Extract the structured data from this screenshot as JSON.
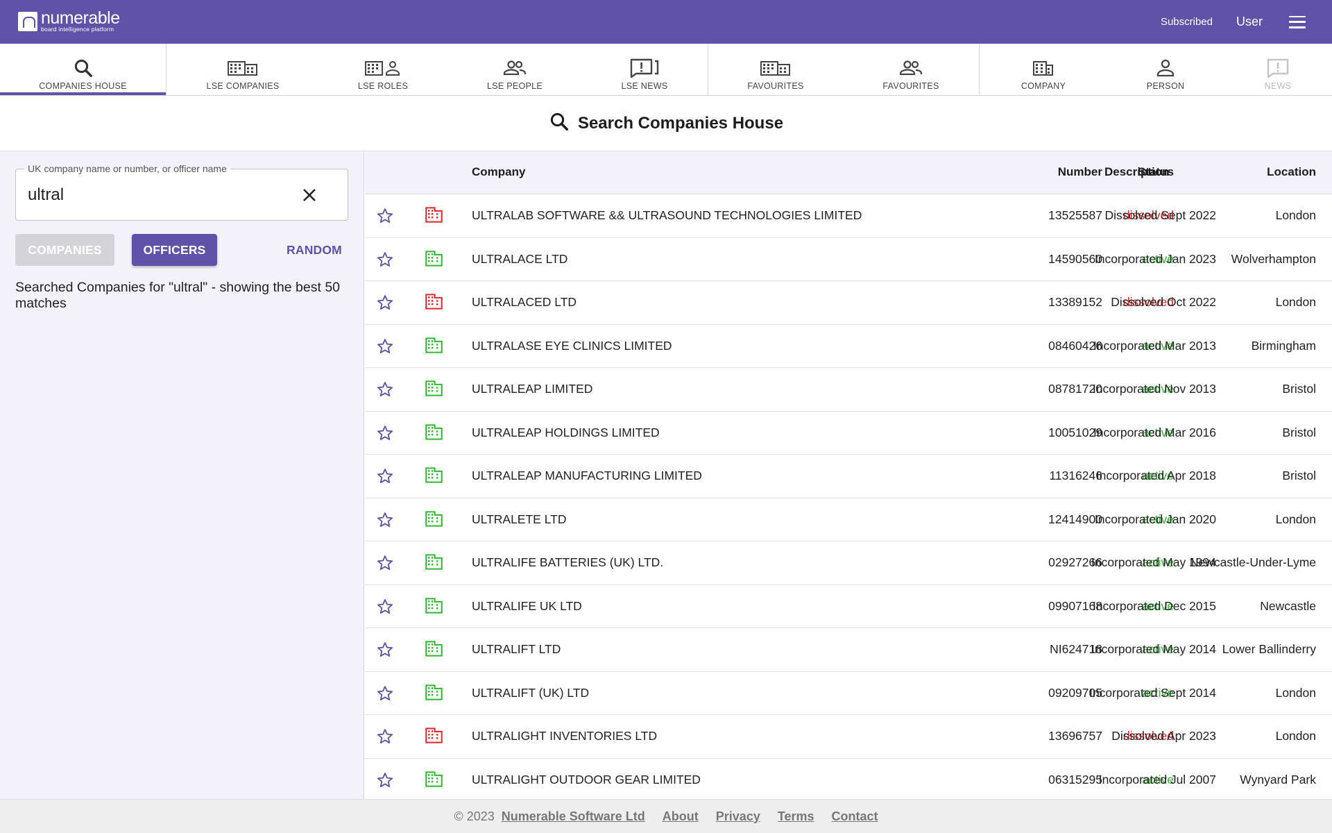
{
  "app": {
    "logo_name": "numerable",
    "logo_tagline": "board intelligence platform",
    "subscribed": "Subscribed",
    "user": "User"
  },
  "tabs": [
    {
      "label": "COMPANIES HOUSE",
      "icon": "search-icon",
      "active": true
    },
    {
      "label": "LSE COMPANIES",
      "icon": "buildings-icon"
    },
    {
      "label": "LSE ROLES",
      "icon": "building-person-icon"
    },
    {
      "label": "LSE PEOPLE",
      "icon": "people-icon"
    },
    {
      "label": "LSE NEWS",
      "icon": "news-icon"
    },
    {
      "label": "FAVOURITES",
      "icon": "buildings-icon"
    },
    {
      "label": "FAVOURITES",
      "icon": "people-icon"
    },
    {
      "label": "COMPANY",
      "icon": "building-icon"
    },
    {
      "label": "PERSON",
      "icon": "person-icon"
    },
    {
      "label": "NEWS",
      "icon": "news-icon",
      "disabled": true
    }
  ],
  "page": {
    "title": "Search Companies House"
  },
  "search": {
    "label": "UK company name or number, or officer name",
    "value": "ultral"
  },
  "buttons": {
    "companies": "COMPANIES",
    "officers": "OFFICERS",
    "random": "RANDOM"
  },
  "search_info": "Searched Companies for \"ultral\" - showing the best 50 matches",
  "table": {
    "headers": {
      "company": "Company",
      "number": "Number",
      "status": "Status",
      "description": "Description",
      "location": "Location"
    },
    "rows": [
      {
        "company": "ULTRALAB SOFTWARE && ULTRASOUND TECHNOLOGIES LIMITED",
        "number": "13525587",
        "status": "dissolved",
        "description": "Dissolved Sept 2022",
        "location": "London"
      },
      {
        "company": "ULTRALACE LTD",
        "number": "14590560",
        "status": "active",
        "description": "Incorporated Jan 2023",
        "location": "Wolverhampton"
      },
      {
        "company": "ULTRALACED LTD",
        "number": "13389152",
        "status": "dissolved",
        "description": "Dissolved Oct 2022",
        "location": "London"
      },
      {
        "company": "ULTRALASE EYE CLINICS LIMITED",
        "number": "08460426",
        "status": "active",
        "description": "Incorporated Mar 2013",
        "location": "Birmingham"
      },
      {
        "company": "ULTRALEAP LIMITED",
        "number": "08781720",
        "status": "active",
        "description": "Incorporated Nov 2013",
        "location": "Bristol"
      },
      {
        "company": "ULTRALEAP HOLDINGS LIMITED",
        "number": "10051029",
        "status": "active",
        "description": "Incorporated Mar 2016",
        "location": "Bristol"
      },
      {
        "company": "ULTRALEAP MANUFACTURING LIMITED",
        "number": "11316246",
        "status": "active",
        "description": "Incorporated Apr 2018",
        "location": "Bristol"
      },
      {
        "company": "ULTRALETE LTD",
        "number": "12414900",
        "status": "active",
        "description": "Incorporated Jan 2020",
        "location": "London"
      },
      {
        "company": "ULTRALIFE BATTERIES (UK) LTD.",
        "number": "02927266",
        "status": "active",
        "description": "Incorporated May 1994",
        "location": "Newcastle-Under-Lyme"
      },
      {
        "company": "ULTRALIFE UK LTD",
        "number": "09907168",
        "status": "active",
        "description": "Incorporated Dec 2015",
        "location": "Newcastle"
      },
      {
        "company": "ULTRALIFT LTD",
        "number": "NI624718",
        "status": "active",
        "description": "Incorporated May 2014",
        "location": "Lower Ballinderry"
      },
      {
        "company": "ULTRALIFT (UK) LTD",
        "number": "09209705",
        "status": "active",
        "description": "Incorporated Sept 2014",
        "location": "London"
      },
      {
        "company": "ULTRALIGHT INVENTORIES LTD",
        "number": "13696757",
        "status": "dissolved",
        "description": "Dissolved Apr 2023",
        "location": "London"
      },
      {
        "company": "ULTRALIGHT OUTDOOR GEAR LIMITED",
        "number": "06315295",
        "status": "active",
        "description": "Incorporated Jul 2007",
        "location": "Wynyard Park"
      }
    ]
  },
  "footer": {
    "copyright": "© 2023",
    "links": [
      "Numerable Software Ltd",
      "About",
      "Privacy",
      "Terms",
      "Contact"
    ]
  },
  "colors": {
    "brand": "#5f52a8",
    "active": "#2eb82e",
    "dissolved": "#e0262a",
    "panel": "#f3f1fa"
  }
}
